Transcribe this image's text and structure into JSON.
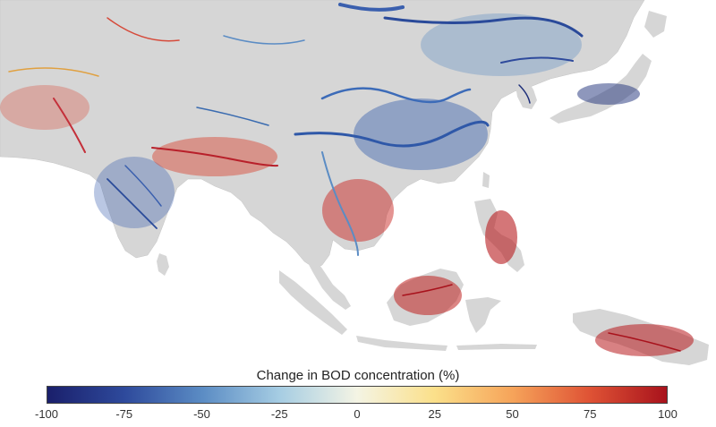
{
  "legend": {
    "title": "Change in BOD concentration (%)",
    "min": -100,
    "max": 100,
    "ticks": [
      "-100",
      "-75",
      "-50",
      "-25",
      "0",
      "25",
      "50",
      "75",
      "100"
    ],
    "colormap": [
      "#1a1f6b",
      "#2e4a9c",
      "#5b8cc4",
      "#a6cde3",
      "#f4f4e4",
      "#fbe08a",
      "#f6a45a",
      "#df5335",
      "#a8121c"
    ]
  },
  "map": {
    "land_color": "#d6d6d6",
    "background_color": "#ffffff"
  }
}
